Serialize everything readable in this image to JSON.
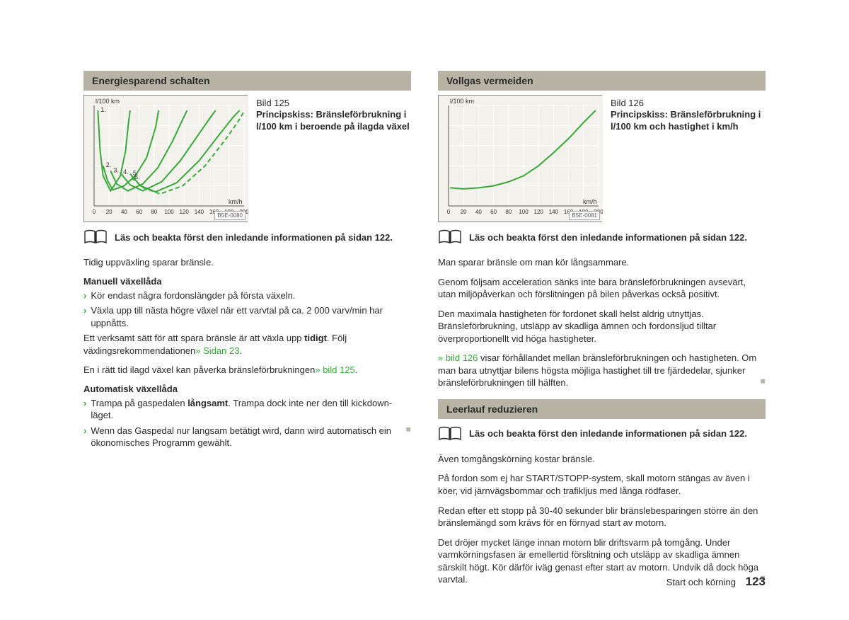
{
  "left": {
    "heading": "Energiesparend schalten",
    "fig": {
      "num": "Bild 125",
      "caption": "Principskiss: Bränsleförbrukning i l/100 km i beroende på ilagda växel",
      "id": "B5E-0080",
      "ylabel": "l/100 km",
      "xlabel": "km/h",
      "background_color": "#f3f1ec",
      "grid_color": "#ffffff",
      "line_colors": [
        "#38a838",
        "#38a838",
        "#38a838",
        "#38a838",
        "#38a838",
        "#38a838"
      ],
      "line_dash": [
        "",
        "",
        "",
        "",
        "",
        "6,4"
      ],
      "line_width": 2,
      "xlim": [
        0,
        200
      ],
      "xtick_step": 20,
      "xticks": [
        "0",
        "20",
        "40",
        "60",
        "80",
        "100",
        "120",
        "140",
        "160",
        "180",
        "200"
      ],
      "labels": [
        "1.",
        "2.",
        "3.",
        "4.",
        "5.",
        "6."
      ],
      "series": [
        [
          [
            5,
            5
          ],
          [
            8,
            45
          ],
          [
            12,
            70
          ],
          [
            22,
            85
          ],
          [
            35,
            70
          ],
          [
            42,
            45
          ],
          [
            46,
            16
          ],
          [
            48,
            5
          ]
        ],
        [
          [
            12,
            60
          ],
          [
            18,
            75
          ],
          [
            25,
            84
          ],
          [
            40,
            80
          ],
          [
            55,
            70
          ],
          [
            70,
            52
          ],
          [
            82,
            22
          ],
          [
            86,
            5
          ]
        ],
        [
          [
            22,
            65
          ],
          [
            30,
            78
          ],
          [
            45,
            85
          ],
          [
            65,
            78
          ],
          [
            85,
            62
          ],
          [
            105,
            35
          ],
          [
            118,
            14
          ],
          [
            124,
            5
          ]
        ],
        [
          [
            35,
            67
          ],
          [
            48,
            79
          ],
          [
            65,
            85
          ],
          [
            90,
            76
          ],
          [
            115,
            55
          ],
          [
            140,
            28
          ],
          [
            155,
            12
          ],
          [
            162,
            5
          ]
        ],
        [
          [
            48,
            68
          ],
          [
            62,
            80
          ],
          [
            82,
            86
          ],
          [
            110,
            77
          ],
          [
            140,
            55
          ],
          [
            168,
            28
          ],
          [
            185,
            12
          ],
          [
            194,
            5
          ]
        ],
        [
          [
            50,
            72
          ],
          [
            66,
            82
          ],
          [
            88,
            88
          ],
          [
            118,
            80
          ],
          [
            148,
            60
          ],
          [
            176,
            33
          ],
          [
            192,
            16
          ],
          [
            200,
            6
          ]
        ]
      ]
    },
    "read_note": "Läs och beakta först den inledande informationen på sidan 122.",
    "p1": "Tidig uppväxling sparar bränsle.",
    "sub1": "Manuell växellåda",
    "b1": "Kör endast några fordonslängder på första växeln.",
    "b2": "Växla upp till nästa högre växel när ett varvtal på ca. 2 000 varv/min har uppnåtts.",
    "p2a": "Ett verksamt sätt för att spara bränsle är att växla upp ",
    "p2bold": "tidigt",
    "p2b": ". Följ växlingsrekommendationen",
    "p2link": "» Sidan 23",
    "p2c": ".",
    "p3a": "En i rätt tid ilagd växel kan påverka bränsleförbrukningen",
    "p3link": "» bild 125",
    "p3b": ".",
    "sub2": "Automatisk växellåda",
    "b3a": "Trampa på gaspedalen ",
    "b3bold": "långsamt",
    "b3b": ". Trampa dock inte ner den till kickdown-läget.",
    "b4": "Wenn das Gaspedal nur langsam betätigt wird, dann wird automatisch ein ökonomisches Programm gewählt."
  },
  "right": {
    "heading1": "Vollgas vermeiden",
    "fig": {
      "num": "Bild 126",
      "caption": "Principskiss: Bränsleförbrukning i l/100 km och hastighet i km/h",
      "id": "B5E-0081",
      "ylabel": "l/100 km",
      "xlabel": "km/h",
      "background_color": "#f3f1ec",
      "grid_color": "#ffffff",
      "line_color": "#38a838",
      "line_width": 2,
      "xlim": [
        0,
        200
      ],
      "xtick_step": 20,
      "xticks": [
        "0",
        "20",
        "40",
        "60",
        "80",
        "100",
        "120",
        "140",
        "160",
        "180",
        "200"
      ],
      "series": [
        [
          2,
          82
        ],
        [
          20,
          83
        ],
        [
          40,
          82
        ],
        [
          60,
          80
        ],
        [
          80,
          76
        ],
        [
          100,
          70
        ],
        [
          120,
          60
        ],
        [
          140,
          47
        ],
        [
          160,
          33
        ],
        [
          180,
          17
        ],
        [
          196,
          5
        ]
      ]
    },
    "read_note": "Läs och beakta först den inledande informationen på sidan 122.",
    "p1": "Man sparar bränsle om man kör långsammare.",
    "p2": "Genom följsam acceleration sänks inte bara bränsleförbrukningen avsevärt, utan miljöpåverkan och förslitningen på bilen påverkas också positivt.",
    "p3": "Den maximala hastigheten för fordonet skall helst aldrig utnyttjas. Bränsleförbrukning, utsläpp av skadliga ämnen och fordonsljud tilltar överproportionellt vid höga hastigheter.",
    "p4link": "» bild 126",
    "p4": " visar förhållandet mellan bränsleförbrukningen och hastigheten. Om man bara utnyttjar bilens högsta möjliga hastighet till tre fjärdedelar, sjunker bränsleförbrukningen till hälften.",
    "heading2": "Leerlauf reduzieren",
    "read_note2": "Läs och beakta först den inledande informationen på sidan 122.",
    "q1": "Även tomgångskörning kostar bränsle.",
    "q2": "På fordon som ej har START/STOPP-system, skall motorn stängas av även i köer, vid järnvägsbommar och trafikljus med långa rödfaser.",
    "q3": "Redan efter ett stopp på 30-40 sekunder blir bränslebesparingen större än den bränslemängd som krävs för en förnyad start av motorn.",
    "q4": "Det dröjer mycket länge innan motorn blir driftsvarm på tomgång. Under varmkörningsfasen är emellertid förslitning och utsläpp av skadliga ämnen särskilt högt. Kör därför iväg genast efter start av motorn. Undvik då dock höga varvtal."
  },
  "footer": {
    "section": "Start och körning",
    "page": "123"
  }
}
